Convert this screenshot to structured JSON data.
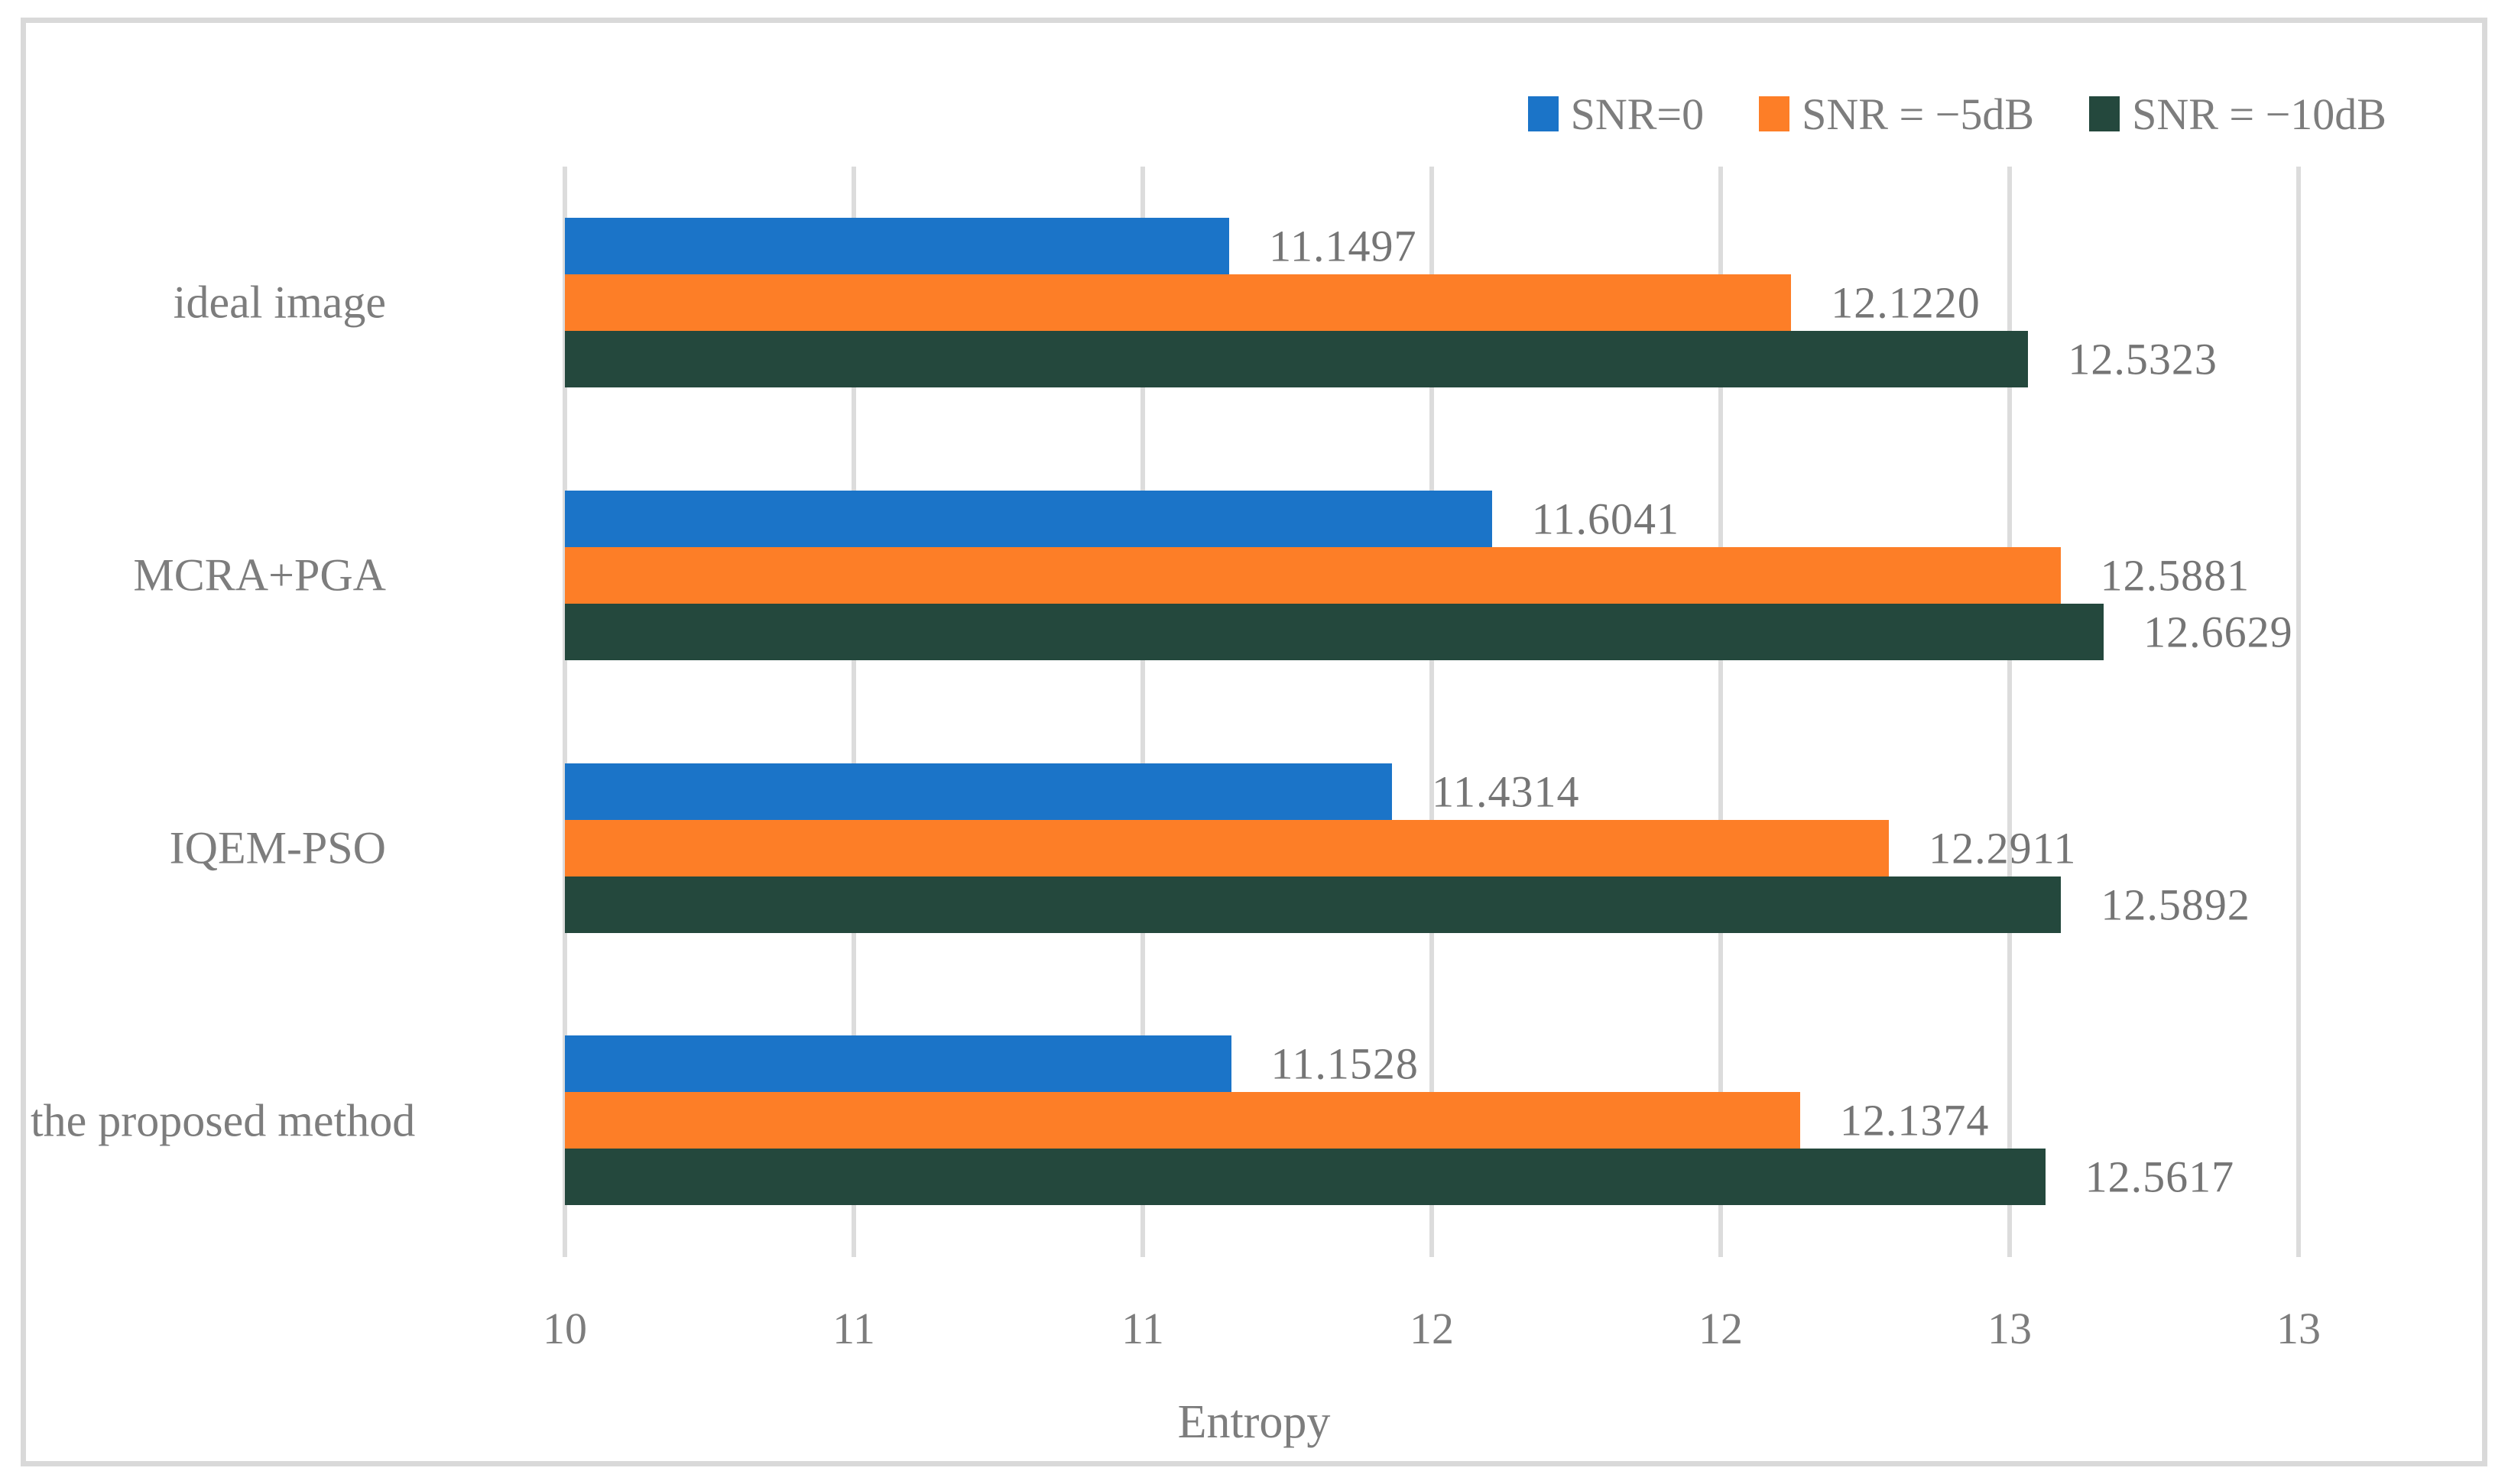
{
  "chart_data": {
    "type": "bar",
    "orientation": "horizontal",
    "title": "",
    "xlabel": "Entropy",
    "ylabel": "",
    "xlim": [
      10,
      13
    ],
    "x_tick_labels": [
      "10",
      "11",
      "11",
      "12",
      "12",
      "13",
      "13"
    ],
    "x_tick_values": [
      10,
      10.5,
      11,
      11.5,
      12,
      12.5,
      13
    ],
    "grid": "vertical-only",
    "legend_position": "top-right",
    "categories": [
      "ideal image",
      "MCRA+PGA",
      "IQEM-PSO",
      "the proposed method"
    ],
    "series": [
      {
        "name": "SNR=0",
        "color": "#1b74c8",
        "values": [
          11.1497,
          11.6041,
          11.4314,
          11.1528
        ],
        "labels": [
          "11.1497",
          "11.6041",
          "11.4314",
          "11.1528"
        ]
      },
      {
        "name": "SNR = −5dB",
        "color": "#fd7e27",
        "values": [
          12.122,
          12.5881,
          12.2911,
          12.1374
        ],
        "labels": [
          "12.1220",
          "12.5881",
          "12.2911",
          "12.1374"
        ]
      },
      {
        "name": "SNR = −10dB",
        "color": "#24483d",
        "values": [
          12.5323,
          12.6629,
          12.5892,
          12.5617
        ],
        "labels": [
          "12.5323",
          "12.6629",
          "12.5892",
          "12.5617"
        ]
      }
    ],
    "style": {
      "gridline_color": "#dcdcdc",
      "frame_border_color": "#d9d9d9",
      "text_color": "#7d7d7d",
      "value_label_color": "#757575",
      "background": "#ffffff"
    }
  }
}
